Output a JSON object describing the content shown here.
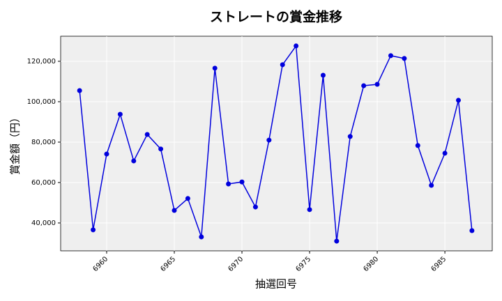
{
  "chart_data": {
    "type": "line",
    "title": "ストレートの賞金推移",
    "x_label": "抽選回号",
    "y_label": "賞金額（円）",
    "x": [
      6958,
      6959,
      6960,
      6961,
      6962,
      6963,
      6964,
      6965,
      6966,
      6967,
      6968,
      6969,
      6970,
      6971,
      6972,
      6973,
      6974,
      6975,
      6976,
      6977,
      6978,
      6979,
      6980,
      6981,
      6982,
      6983,
      6984,
      6985,
      6986,
      6987
    ],
    "series": [
      {
        "name": "賞金",
        "color": "#0000dd",
        "values": [
          105500,
          36600,
          74100,
          93800,
          70700,
          83800,
          76600,
          46200,
          52100,
          33100,
          116600,
          59300,
          60300,
          47900,
          81000,
          118300,
          127600,
          46600,
          113100,
          31000,
          82800,
          107900,
          108600,
          122800,
          121400,
          78300,
          58600,
          74500,
          100700,
          36200
        ]
      }
    ],
    "xlim": [
      6956.6,
      6988.5
    ],
    "xticks": [
      6960,
      6965,
      6970,
      6975,
      6980,
      6985
    ],
    "ylim": [
      26200,
      132400
    ],
    "yticks": [
      {
        "value": 40000,
        "label": "40,000"
      },
      {
        "value": 60000,
        "label": "60,000"
      },
      {
        "value": 80000,
        "label": "80,000"
      },
      {
        "value": 100000,
        "label": "100,000"
      },
      {
        "value": 120000,
        "label": "120,000"
      }
    ],
    "grid": true
  }
}
